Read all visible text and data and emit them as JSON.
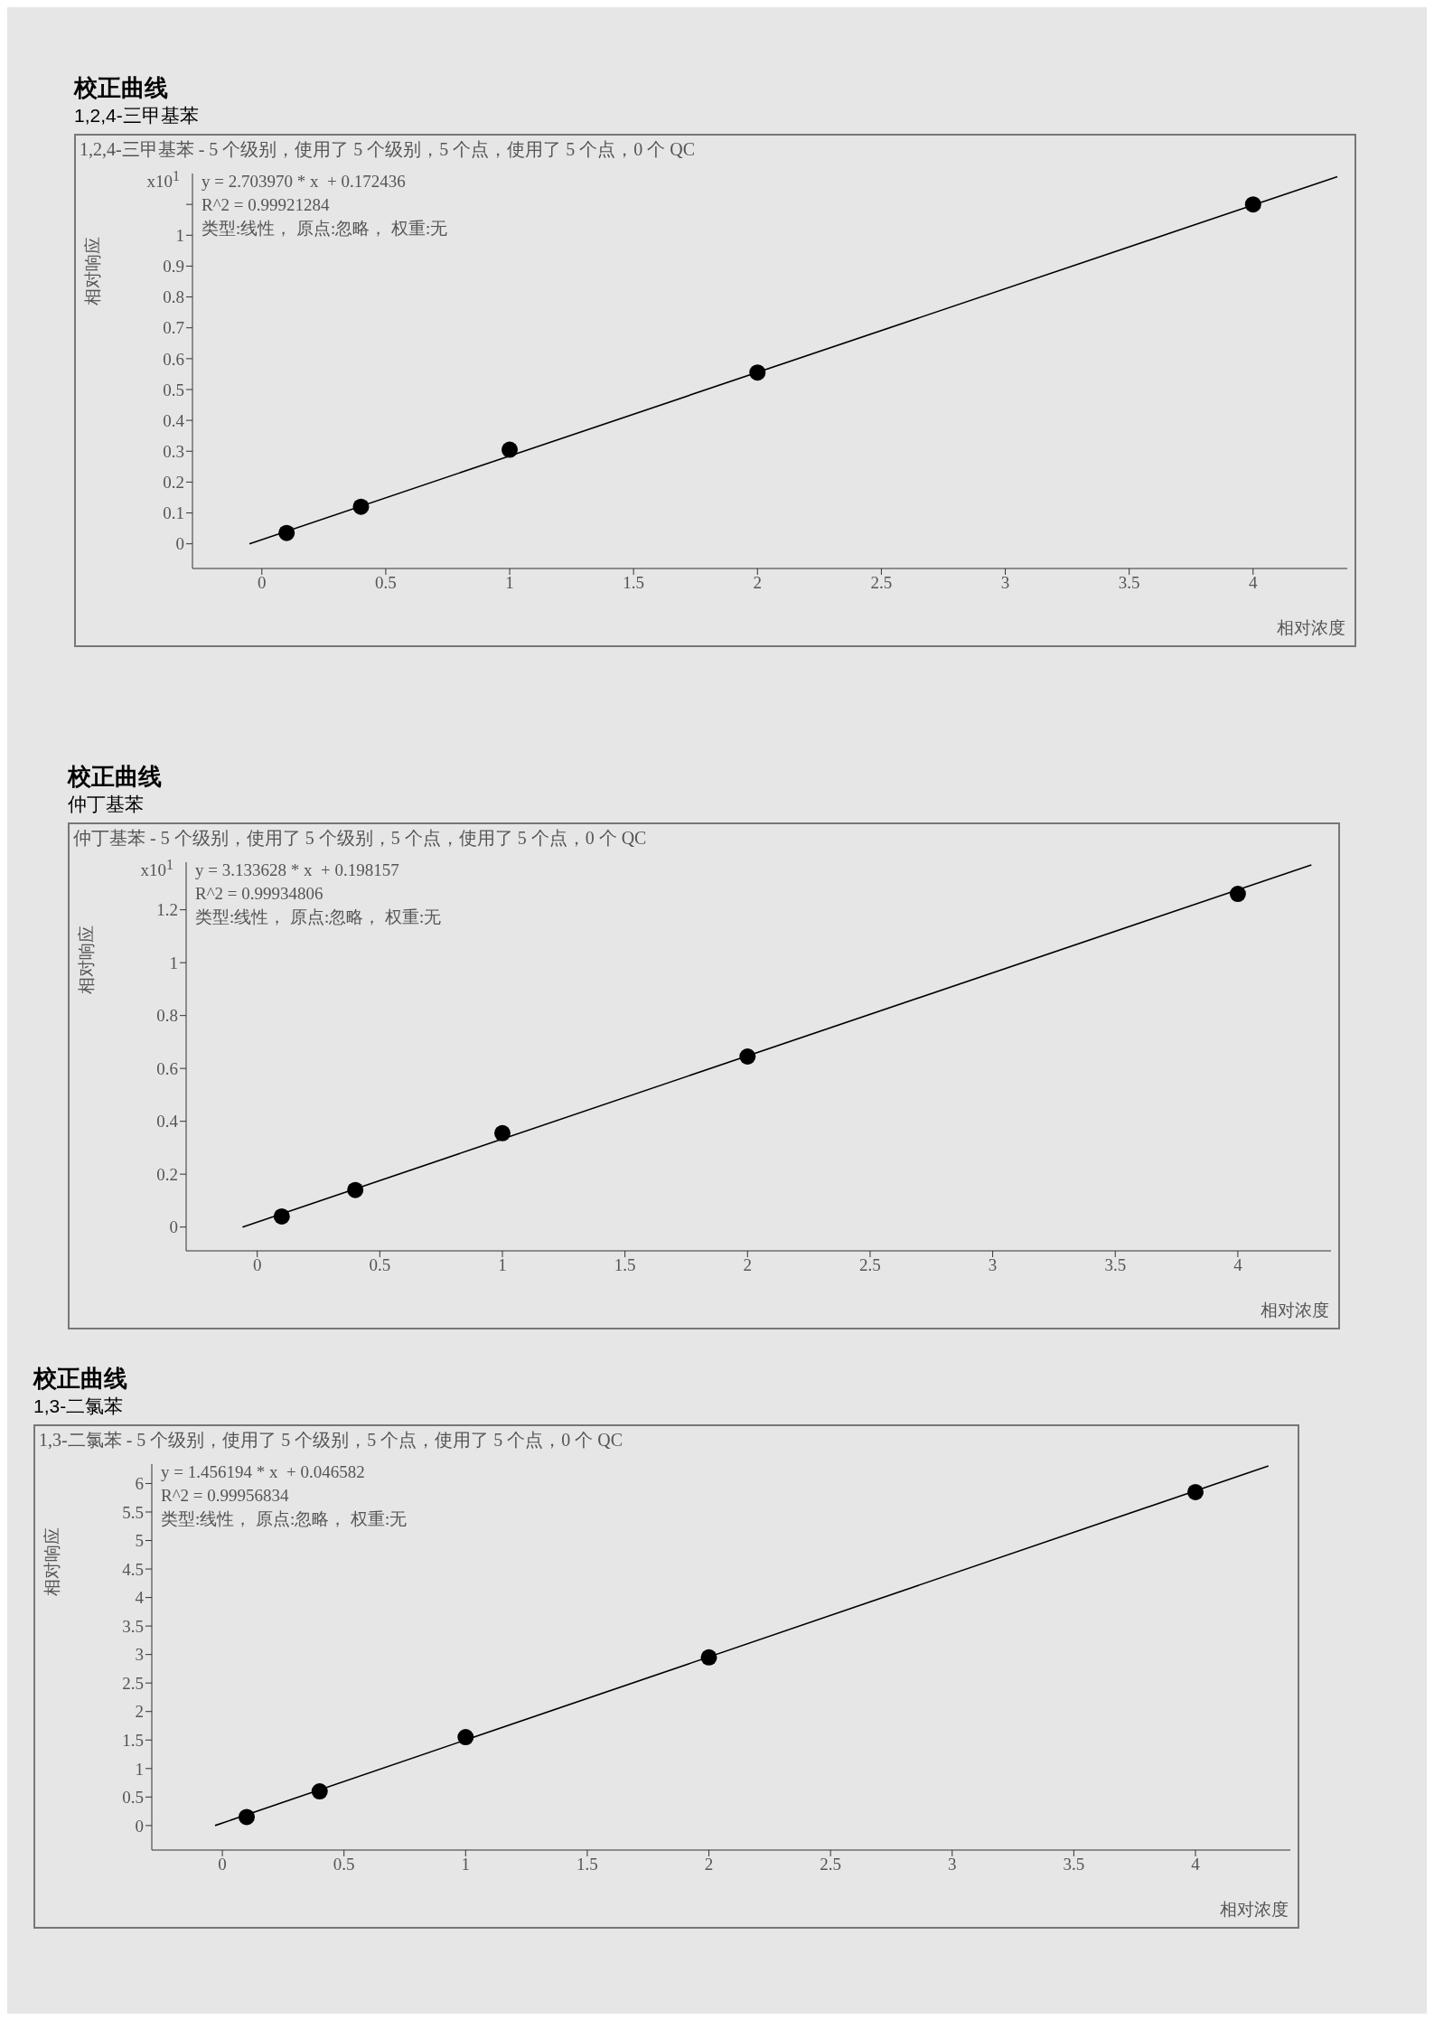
{
  "chart_data": [
    {
      "type": "scatter",
      "title": "校正曲线",
      "subtitle": "1,2,4-三甲基苯",
      "xlabel": "相对浓度",
      "ylabel": "相对响应",
      "annotations": [
        "1,2,4-三甲基苯 - 5 个级别，使用了 5 个级别，5 个点，使用了 5 个点，0 个 QC",
        "y = 2.703970 * x  + 0.172436",
        "R^2 = 0.99921284",
        "类型:线性， 原点:忽略， 权重:无",
        "x10$^{1}$"
      ],
      "xlim": [
        -0.28,
        4.38
      ],
      "xticks": [
        0,
        0.5,
        1,
        1.5,
        2,
        2.5,
        3,
        3.5,
        4
      ],
      "ylim": [
        -0.08,
        1.2
      ],
      "yticks": [
        0,
        0.1,
        0.2,
        0.3,
        0.4,
        0.5,
        0.6,
        0.7,
        0.8,
        0.9,
        1,
        {
          "value": 1.1,
          "label": null
        }
      ],
      "series": [
        {
          "x": [
            0.1,
            0.4,
            1,
            2,
            4
          ],
          "values": [
            0.035,
            0.12,
            0.305,
            0.555,
            1.1
          ],
          "color": "#000000",
          "marker": "circle"
        },
        {
          "type": "line",
          "x": [
            -0.05,
            4.34
          ],
          "values": [
            0,
            1.19
          ],
          "color": "#000000"
        }
      ]
    },
    {
      "type": "scatter",
      "title": "校正曲线",
      "subtitle": "仲丁基苯",
      "xlabel": "相对浓度",
      "ylabel": "相对响应",
      "annotations": [
        "仲丁基苯 - 5 个级别，使用了 5 个级别，5 个点，使用了 5 个点，0 个 QC",
        "y = 3.133628 * x  + 0.198157",
        "R^2 = 0.99934806",
        "类型:线性， 原点:忽略， 权重:无",
        "x10$^{1}$"
      ],
      "xlim": [
        -0.29,
        4.38
      ],
      "xticks": [
        0,
        0.5,
        1,
        1.5,
        2,
        2.5,
        3,
        3.5,
        4
      ],
      "ylim": [
        -0.09,
        1.38
      ],
      "yticks": [
        0,
        0.2,
        0.4,
        0.6,
        0.8,
        1,
        1.2
      ],
      "series": [
        {
          "x": [
            0.1,
            0.4,
            1,
            2,
            4
          ],
          "values": [
            0.04,
            0.14,
            0.355,
            0.645,
            1.26
          ],
          "color": "#000000",
          "marker": "circle"
        },
        {
          "type": "line",
          "x": [
            -0.06,
            4.3
          ],
          "values": [
            0,
            1.37
          ],
          "color": "#000000"
        }
      ]
    },
    {
      "type": "scatter",
      "title": "校正曲线",
      "subtitle": "1,3-二氯苯",
      "xlabel": "相对浓度",
      "ylabel": "相对响应",
      "annotations": [
        "1,3-二氯苯 - 5 个级别，使用了 5 个级别，5 个点，使用了 5 个点，0 个 QC",
        "y = 1.456194 * x  + 0.046582",
        "R^2 = 0.99956834",
        "类型:线性， 原点:忽略， 权重:无"
      ],
      "xlim": [
        -0.29,
        4.39
      ],
      "xticks": [
        0,
        0.5,
        1,
        1.5,
        2,
        2.5,
        3,
        3.5,
        4
      ],
      "ylim": [
        -0.43,
        6.34
      ],
      "yticks": [
        0,
        0.5,
        1,
        1.5,
        2,
        2.5,
        3,
        3.5,
        4,
        4.5,
        5,
        5.5,
        6
      ],
      "series": [
        {
          "x": [
            0.1,
            0.4,
            1,
            2,
            4
          ],
          "values": [
            0.15,
            0.6,
            1.55,
            2.95,
            5.85
          ],
          "color": "#000000",
          "marker": "circle"
        },
        {
          "type": "line",
          "x": [
            -0.03,
            4.3
          ],
          "values": [
            0,
            6.31
          ],
          "color": "#000000"
        }
      ]
    }
  ]
}
